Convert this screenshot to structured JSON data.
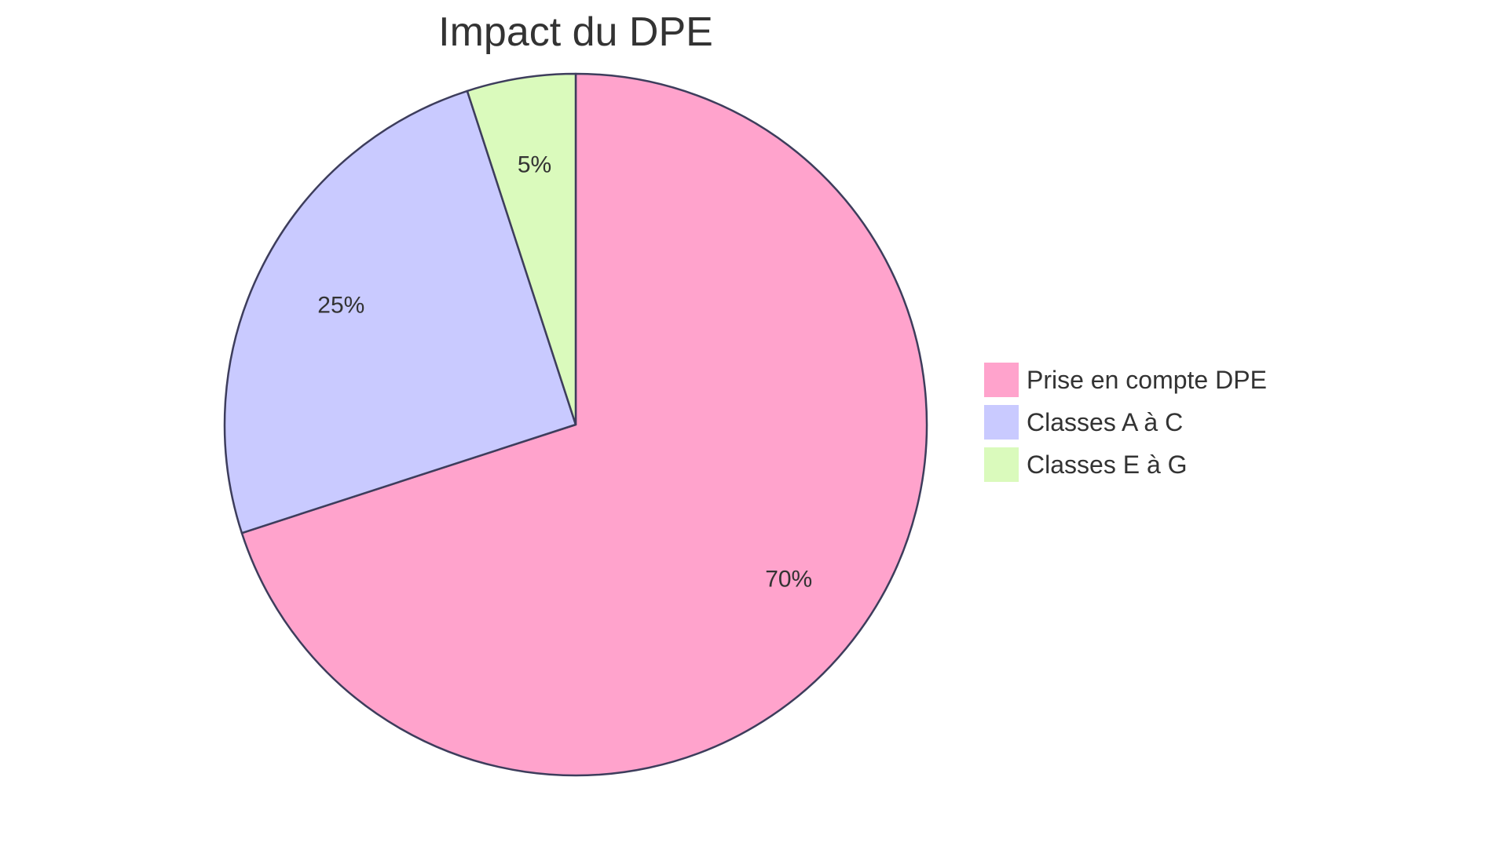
{
  "chart_data": {
    "type": "pie",
    "title": "Impact du DPE",
    "slices": [
      {
        "label": "Prise en compte DPE",
        "value": 70,
        "display": "70%",
        "color": "#FFA3CC"
      },
      {
        "label": "Classes A à C",
        "value": 25,
        "display": "25%",
        "color": "#C9CAFF"
      },
      {
        "label": "Classes E à G",
        "value": 5,
        "display": "5%",
        "color": "#DAFABC"
      }
    ],
    "start_angle": "top",
    "direction": "clockwise",
    "stroke_color": "#3D3D5C",
    "legend_position": "right"
  }
}
